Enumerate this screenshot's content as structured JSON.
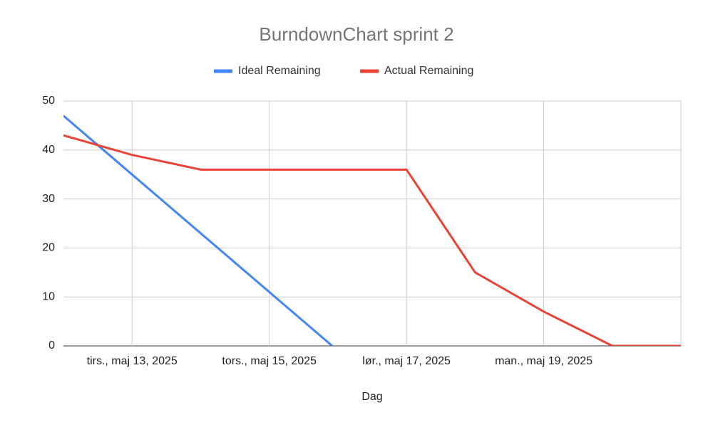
{
  "chart_data": {
    "type": "line",
    "title": "BurndownChart sprint 2",
    "x_label": "Dag",
    "categories": [
      null,
      "tirs., maj 13, 2025",
      null,
      "tors., maj 15, 2025",
      null,
      "lør., maj 17, 2025",
      null,
      "man., maj 19, 2025",
      null,
      null
    ],
    "series": [
      {
        "name": "Ideal Remaining",
        "color": "#4285f4",
        "values": [
          47,
          35,
          23,
          11,
          -1,
          null,
          null,
          null,
          null,
          null
        ]
      },
      {
        "name": "Actual Remaining",
        "color": "#ea4335",
        "values": [
          43,
          39,
          36,
          36,
          36,
          36,
          15,
          7,
          0,
          0
        ]
      }
    ],
    "ylim": [
      0,
      50
    ],
    "yticks": [
      0,
      10,
      20,
      30,
      40,
      50
    ],
    "grid": true,
    "legend": "top"
  }
}
